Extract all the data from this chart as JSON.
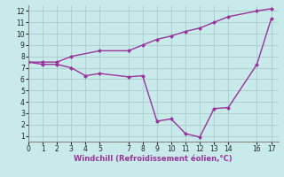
{
  "line1_x": [
    0,
    1,
    2,
    3,
    5,
    7,
    8,
    9,
    10,
    11,
    12,
    13,
    14,
    16,
    17
  ],
  "line1_y": [
    7.5,
    7.5,
    7.5,
    8.0,
    8.5,
    8.5,
    9.0,
    9.5,
    9.8,
    10.2,
    10.5,
    11.0,
    11.5,
    12.0,
    12.2
  ],
  "line2_x": [
    0,
    1,
    2,
    3,
    4,
    5,
    7,
    8,
    9,
    10,
    11,
    12,
    13,
    14,
    16,
    17
  ],
  "line2_y": [
    7.5,
    7.3,
    7.3,
    7.0,
    6.3,
    6.5,
    6.2,
    6.3,
    2.3,
    2.5,
    1.2,
    0.9,
    3.4,
    3.5,
    7.3,
    11.3
  ],
  "color": "#993399",
  "bg_color": "#c8eaea",
  "grid_color": "#aacccc",
  "xlabel": "Windchill (Refroidissement éolien,°C)",
  "xlim": [
    0,
    17.5
  ],
  "ylim": [
    0.5,
    12.5
  ],
  "xticks": [
    0,
    1,
    2,
    3,
    4,
    5,
    7,
    8,
    9,
    10,
    11,
    12,
    13,
    14,
    16,
    17
  ],
  "yticks": [
    1,
    2,
    3,
    4,
    5,
    6,
    7,
    8,
    9,
    10,
    11,
    12
  ],
  "marker": "D",
  "markersize": 2.5,
  "linewidth": 1.0,
  "tick_labelsize": 5.5,
  "xlabel_fontsize": 6.0
}
